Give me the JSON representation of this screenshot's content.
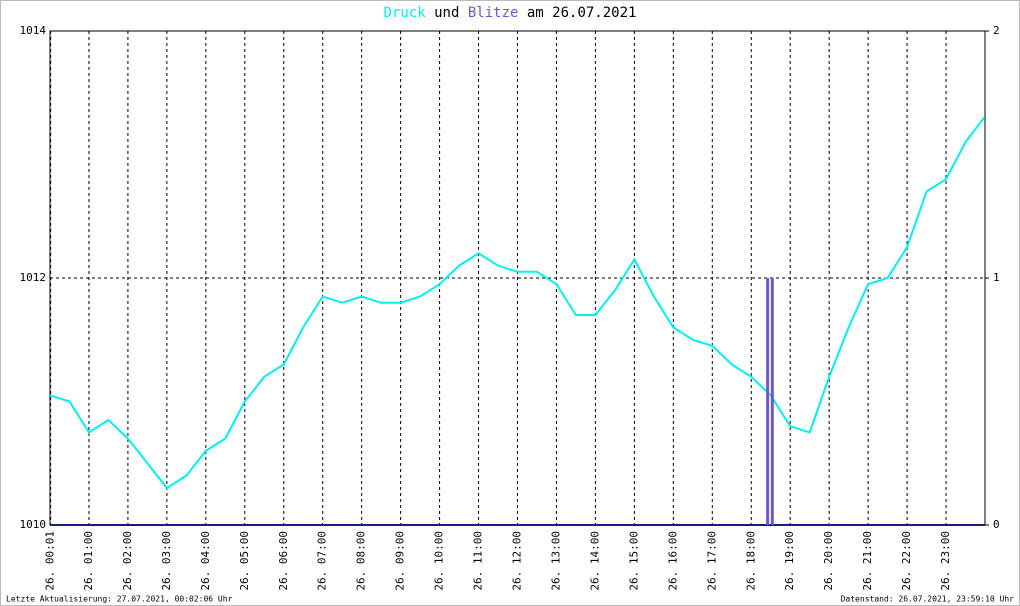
{
  "chart_data": {
    "type": "line",
    "title_parts": [
      "und",
      "am 26.07.2021"
    ],
    "footer_left": "Letzte Aktualisierung: 27.07.2021, 00:02:06 Uhr",
    "footer_right": "Datenstand: 26.07.2021, 23:59:10 Uhr",
    "xlim": [
      0,
      24
    ],
    "xticks": [
      {
        "value": 0.0167,
        "label": "26. 00:01"
      },
      {
        "value": 1,
        "label": "26. 01:00"
      },
      {
        "value": 2,
        "label": "26. 02:00"
      },
      {
        "value": 3,
        "label": "26. 03:00"
      },
      {
        "value": 4,
        "label": "26. 04:00"
      },
      {
        "value": 5,
        "label": "26. 05:00"
      },
      {
        "value": 6,
        "label": "26. 06:00"
      },
      {
        "value": 7,
        "label": "26. 07:00"
      },
      {
        "value": 8,
        "label": "26. 08:00"
      },
      {
        "value": 9,
        "label": "26. 09:00"
      },
      {
        "value": 10,
        "label": "26. 10:00"
      },
      {
        "value": 11,
        "label": "26. 11:00"
      },
      {
        "value": 12,
        "label": "26. 12:00"
      },
      {
        "value": 13,
        "label": "26. 13:00"
      },
      {
        "value": 14,
        "label": "26. 14:00"
      },
      {
        "value": 15,
        "label": "26. 15:00"
      },
      {
        "value": 16,
        "label": "26. 16:00"
      },
      {
        "value": 17,
        "label": "26. 17:00"
      },
      {
        "value": 18,
        "label": "26. 18:00"
      },
      {
        "value": 19,
        "label": "26. 19:00"
      },
      {
        "value": 20,
        "label": "26. 20:00"
      },
      {
        "value": 21,
        "label": "26. 21:00"
      },
      {
        "value": 22,
        "label": "26. 22:00"
      },
      {
        "value": 23,
        "label": "26. 23:00"
      }
    ],
    "ylim": [
      1010,
      1014
    ],
    "yticks": [
      1010,
      1012,
      1014
    ],
    "y2lim": [
      0,
      2
    ],
    "y2ticks": [
      0,
      1,
      2
    ],
    "grid": true,
    "series": [
      {
        "name": "Druck",
        "color": "#00f0f0",
        "x": [
          0,
          0.5,
          1,
          1.5,
          2,
          2.5,
          3,
          3.5,
          4,
          4.5,
          5,
          5.5,
          6,
          6.5,
          7,
          7.5,
          8,
          8.5,
          9,
          9.5,
          10,
          10.5,
          11,
          11.5,
          12,
          12.5,
          13,
          13.5,
          14,
          14.5,
          15,
          15.5,
          16,
          16.5,
          17,
          17.5,
          18,
          18.5,
          19,
          19.5,
          20,
          20.5,
          21,
          21.5,
          22,
          22.5,
          23,
          23.5,
          23.98
        ],
        "values": [
          1011.05,
          1011.0,
          1010.75,
          1010.85,
          1010.7,
          1010.5,
          1010.3,
          1010.4,
          1010.6,
          1010.7,
          1011.0,
          1011.2,
          1011.3,
          1011.6,
          1011.85,
          1011.8,
          1011.85,
          1011.8,
          1011.8,
          1011.85,
          1011.95,
          1012.1,
          1012.2,
          1012.1,
          1012.05,
          1012.05,
          1011.95,
          1011.7,
          1011.7,
          1011.9,
          1012.15,
          1011.85,
          1011.6,
          1011.5,
          1011.45,
          1011.3,
          1011.2,
          1011.05,
          1010.8,
          1010.75,
          1011.2,
          1011.6,
          1011.95,
          1012.0,
          1012.25,
          1012.7,
          1012.8,
          1013.1,
          1013.3
        ]
      },
      {
        "name": "Blitze",
        "color": "#6a5acd",
        "axis": "y2",
        "x": [
          18.42,
          18.54
        ],
        "values": [
          1,
          1
        ]
      }
    ]
  }
}
